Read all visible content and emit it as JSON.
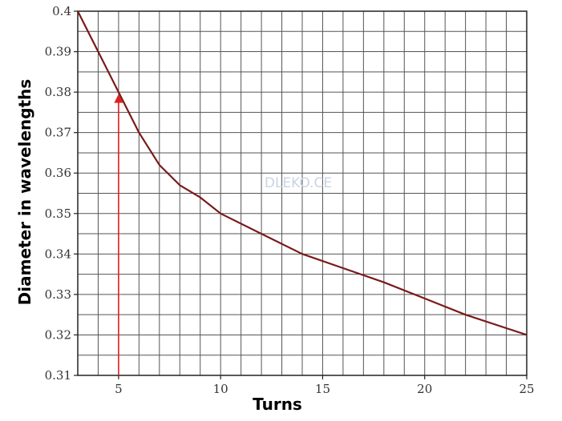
{
  "chart_data": {
    "type": "line",
    "title": "",
    "xlabel": "Turns",
    "ylabel": "Diameter in wavelengths",
    "xlim": [
      3,
      25
    ],
    "ylim": [
      0.31,
      0.4
    ],
    "x_ticks": [
      5,
      10,
      15,
      20,
      25
    ],
    "y_ticks": [
      0.31,
      0.32,
      0.33,
      0.34,
      0.35,
      0.36,
      0.37,
      0.38,
      0.39,
      0.4
    ],
    "x_tick_labels": [
      "5",
      "10",
      "15",
      "20",
      "25"
    ],
    "y_tick_labels": [
      "0.31",
      "0.32",
      "0.33",
      "0.34",
      "0.35",
      "0.36",
      "0.37",
      "0.38",
      "0.39",
      "0.4"
    ],
    "grid": true,
    "series": [
      {
        "x": [
          3,
          4,
          5,
          6,
          7,
          8,
          9,
          10,
          12,
          14,
          16,
          18,
          20,
          22,
          25
        ],
        "y": [
          0.4,
          0.39,
          0.38,
          0.37,
          0.362,
          0.357,
          0.354,
          0.35,
          0.345,
          0.34,
          0.3365,
          0.333,
          0.329,
          0.325,
          0.32
        ],
        "color": "#7a1a1a"
      }
    ],
    "annotations": [
      {
        "type": "arrow",
        "x": 5,
        "y_from": 0.31,
        "y_to": 0.38,
        "color": "#e02020"
      }
    ],
    "watermark": "DLEKO.CE"
  }
}
